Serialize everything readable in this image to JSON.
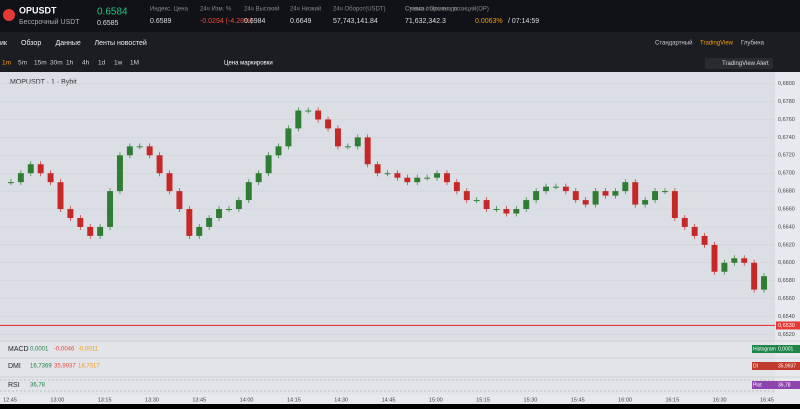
{
  "header": {
    "symbol": "OPUSDT",
    "subtitle": "Бессрочный USDT",
    "last_price": "0.6584",
    "mark_price": "0.6585",
    "stats": [
      {
        "label": "Индекс. Цена",
        "value": "0.6589"
      },
      {
        "label": "24ч Изм. %",
        "value": "-0.0294 (-4.28%)"
      },
      {
        "label": "24ч Высокий",
        "value": "0.6984"
      },
      {
        "label": "24ч Низкий",
        "value": "0.6649"
      },
      {
        "label": "24ч Оборот(USDT)",
        "value": "57,743,141.84"
      },
      {
        "label": "Сумма открытых позиций(OP)",
        "value": "71,632,342.3"
      }
    ],
    "funding": {
      "label": "Ставка / Отсчет до",
      "rate": "0.0063%",
      "countdown": "/ 07:14:59"
    }
  },
  "tabs": [
    "ик",
    "Обзор",
    "Данные",
    "Ленты новостей"
  ],
  "view_modes": [
    "Стандартный",
    "TradingView",
    "Глубина"
  ],
  "toolbar": {
    "intervals": [
      "1m",
      "5m",
      "15m",
      "30m",
      "1h",
      "4h",
      "1d",
      "1w",
      "1M"
    ],
    "price_type": "Цена маркировки",
    "alert": "TradingView Alert"
  },
  "chart_data": {
    "type": "candlestick",
    "title": ".MOPUSDT · 1 · Bybit",
    "values": [
      0.669,
      0.67,
      0.671,
      0.67,
      0.669,
      0.666,
      0.665,
      0.664,
      0.663,
      0.664,
      0.668,
      0.672,
      0.673,
      0.673,
      0.672,
      0.67,
      0.668,
      0.666,
      0.663,
      0.664,
      0.665,
      0.666,
      0.666,
      0.667,
      0.669,
      0.67,
      0.672,
      0.673,
      0.675,
      0.677,
      0.677,
      0.676,
      0.675,
      0.673,
      0.673,
      0.674,
      0.671,
      0.67,
      0.67,
      0.6695,
      0.669,
      0.6695,
      0.6695,
      0.67,
      0.669,
      0.668,
      0.667,
      0.667,
      0.666,
      0.666,
      0.6655,
      0.666,
      0.667,
      0.668,
      0.6685,
      0.6685,
      0.668,
      0.667,
      0.6665,
      0.668,
      0.6675,
      0.668,
      0.669,
      0.6665,
      0.667,
      0.668,
      0.668,
      0.665,
      0.664,
      0.663,
      0.662,
      0.659,
      0.66,
      0.6605,
      0.66,
      0.657,
      0.6585
    ],
    "ylim": [
      0.6516,
      0.6813
    ],
    "yticks": [
      {
        "value": 0.68,
        "label": "0,6800"
      },
      {
        "value": 0.678,
        "label": "0,6780"
      },
      {
        "value": 0.676,
        "label": "0,6760"
      },
      {
        "value": 0.674,
        "label": "0,6740"
      },
      {
        "value": 0.672,
        "label": "0,6720"
      },
      {
        "value": 0.67,
        "label": "0,6700"
      },
      {
        "value": 0.668,
        "label": "0,6680"
      },
      {
        "value": 0.666,
        "label": "0,6660"
      },
      {
        "value": 0.664,
        "label": "0,6640"
      },
      {
        "value": 0.662,
        "label": "0,6620"
      },
      {
        "value": 0.66,
        "label": "0,6600"
      },
      {
        "value": 0.658,
        "label": "0,6580"
      },
      {
        "value": 0.656,
        "label": "0,6560"
      },
      {
        "value": 0.654,
        "label": "0,6540"
      },
      {
        "value": 0.652,
        "label": "0,6520"
      }
    ],
    "level_line": {
      "value": 0.653,
      "label": "0,6530",
      "color": "#e53935"
    },
    "time_labels": [
      "12:45",
      "13:00",
      "13:15",
      "13:30",
      "13:45",
      "14:00",
      "14:15",
      "14:30",
      "14:45",
      "15:00",
      "15:15",
      "15:30",
      "15:45",
      "16:00",
      "16:15",
      "16:30",
      "16:45"
    ],
    "up_color": "#2e7d32",
    "down_color": "#c62828"
  },
  "indicators": [
    {
      "name": "MACD",
      "values": [
        "0,0001",
        "-0,0046",
        "-0,0011"
      ],
      "tag": "Histogram",
      "tag_value": "0,0001"
    },
    {
      "name": "DMI",
      "values": [
        "16,7369",
        "35,9937",
        "18,7317"
      ],
      "tag": "DI",
      "tag_value": "35,9937"
    },
    {
      "name": "RSI",
      "values": [
        "36,78"
      ],
      "tag": "Plot",
      "tag_value": "36,78"
    }
  ]
}
